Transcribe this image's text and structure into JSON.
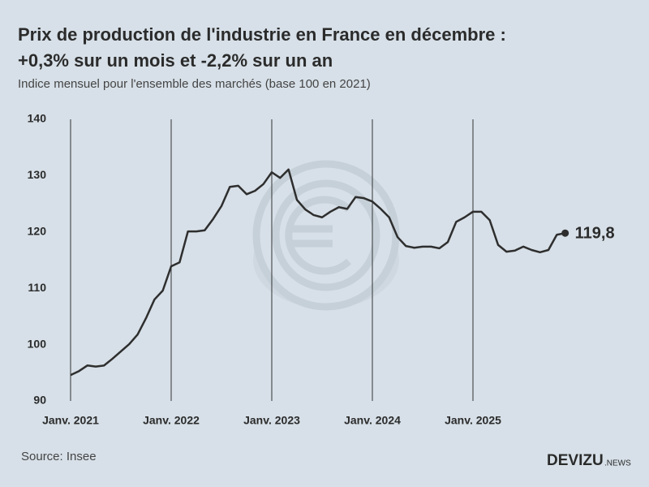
{
  "chart_data": {
    "type": "line",
    "title": [
      "Prix de production de l'industrie en France en décembre :",
      "+0,3% sur un mois et -2,2% sur un an"
    ],
    "subtitle": "Indice mensuel pour l'ensemble des marchés (base 100 en 2021)",
    "source": "Source: Insee",
    "brand": "DEVIZU",
    "brand_suffix": ".NEWS",
    "categories": [
      "Janv. 2021",
      null,
      null,
      null,
      null,
      null,
      null,
      null,
      null,
      null,
      null,
      null,
      "Janv. 2022",
      null,
      null,
      null,
      null,
      null,
      null,
      null,
      null,
      null,
      null,
      null,
      "Janv. 2023",
      null,
      null,
      null,
      null,
      null,
      null,
      null,
      null,
      null,
      null,
      null,
      "Janv. 2024",
      null,
      null,
      null,
      null,
      null,
      null,
      null,
      null,
      null,
      null,
      null,
      "Janv. 2025",
      null,
      null,
      null,
      null,
      null,
      null,
      null,
      null,
      null,
      null,
      null
    ],
    "values": [
      94.6,
      95.3,
      96.3,
      96.1,
      96.3,
      97.5,
      98.8,
      100.1,
      101.8,
      104.7,
      108.0,
      109.6,
      113.9,
      114.6,
      120.1,
      120.1,
      120.3,
      122.3,
      124.6,
      128.0,
      128.2,
      126.7,
      127.3,
      128.5,
      130.6,
      129.6,
      131.1,
      125.7,
      124.0,
      123.0,
      122.6,
      123.6,
      124.4,
      124.1,
      126.2,
      126.0,
      125.4,
      124.1,
      122.6,
      119.1,
      117.5,
      117.2,
      117.4,
      117.4,
      117.1,
      118.2,
      121.8,
      122.6,
      123.6,
      123.6,
      122.1,
      117.7,
      116.5,
      116.7,
      117.4,
      116.8,
      116.4,
      116.8,
      119.5,
      119.8
    ],
    "value_labels": [
      null,
      null,
      null,
      null,
      null,
      null,
      null,
      null,
      null,
      null,
      null,
      null,
      null,
      null,
      null,
      null,
      null,
      null,
      null,
      null,
      null,
      null,
      null,
      null,
      null,
      null,
      null,
      null,
      null,
      null,
      null,
      null,
      null,
      null,
      null,
      null,
      null,
      null,
      null,
      null,
      null,
      null,
      null,
      null,
      null,
      null,
      null,
      null,
      null,
      null,
      null,
      null,
      null,
      null,
      null,
      null,
      null,
      null,
      null,
      "119,8"
    ],
    "color": "#2e2e2e",
    "ylim": [
      90,
      140
    ],
    "yticks": [
      90,
      100,
      110,
      120,
      130,
      140
    ],
    "grid": "x"
  }
}
